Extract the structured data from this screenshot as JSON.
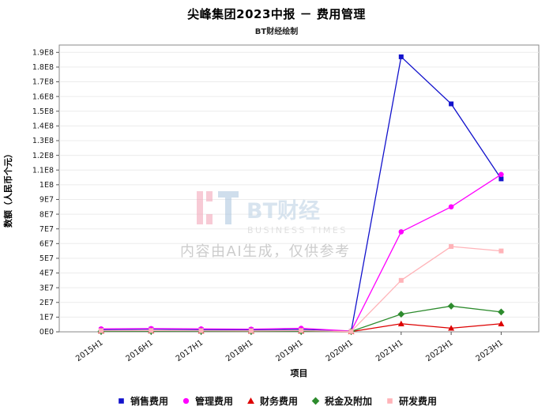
{
  "title": "尖峰集团2023中报 － 费用管理",
  "subtitle": "BT财经绘制",
  "watermark": {
    "logo_text": "BT财经",
    "logo_sub": "BUSINESS TIMES",
    "notice": "内容由AI生成，仅供参考",
    "logo_text_color": "#b9cfe2",
    "logo_sub_color": "#c9c9c9",
    "notice_color": "#a3a3a3",
    "bar_pink": "#f2a0b4",
    "bar_blue": "#a8c4de"
  },
  "chart_data": {
    "type": "line",
    "title": "尖峰集团2023中报 － 费用管理",
    "subtitle": "BT财经绘制",
    "xlabel": "项目",
    "ylabel": "数额（人民币个元）",
    "categories": [
      "2015H1",
      "2016H1",
      "2017H1",
      "2018H1",
      "2019H1",
      "2020H1",
      "2021H1",
      "2022H1",
      "2023H1"
    ],
    "ylim": [
      0,
      195000000
    ],
    "ytick_values": [
      0,
      10000000,
      20000000,
      30000000,
      40000000,
      50000000,
      60000000,
      70000000,
      80000000,
      90000000,
      100000000,
      110000000,
      120000000,
      130000000,
      140000000,
      150000000,
      160000000,
      170000000,
      180000000,
      190000000
    ],
    "ytick_labels": [
      "0E0",
      "1E7",
      "2E7",
      "3E7",
      "4E7",
      "5E7",
      "6E7",
      "7E7",
      "8E7",
      "9E7",
      "1E8",
      "1.1E8",
      "1.2E8",
      "1.3E8",
      "1.4E8",
      "1.5E8",
      "1.6E8",
      "1.7E8",
      "1.8E8",
      "1.9E8"
    ],
    "grid": true,
    "legend_position": "bottom",
    "grid_color": "#ececec",
    "border_color": "#8a8a8a",
    "series": [
      {
        "name": "销售费用",
        "color": "#1212cc",
        "marker": "square",
        "values": [
          1500000,
          1800000,
          1500000,
          1400000,
          1600000,
          300000,
          187000000,
          155000000,
          104000000
        ]
      },
      {
        "name": "管理费用",
        "color": "#ff00ff",
        "marker": "circle",
        "values": [
          2000000,
          2200000,
          2000000,
          1800000,
          2400000,
          500000,
          68000000,
          85000000,
          107000000
        ]
      },
      {
        "name": "财务费用",
        "color": "#dd0000",
        "marker": "triangle",
        "values": [
          600000,
          700000,
          600000,
          500000,
          600000,
          150000,
          5500000,
          2500000,
          5500000
        ]
      },
      {
        "name": "税金及附加",
        "color": "#2d8b2d",
        "marker": "diamond",
        "values": [
          400000,
          500000,
          500000,
          400000,
          500000,
          250000,
          12000000,
          17500000,
          13500000
        ]
      },
      {
        "name": "研发费用",
        "color": "#ffb3b8",
        "marker": "square",
        "values": [
          800000,
          900000,
          800000,
          700000,
          900000,
          200000,
          35000000,
          58000000,
          55000000
        ]
      }
    ]
  }
}
